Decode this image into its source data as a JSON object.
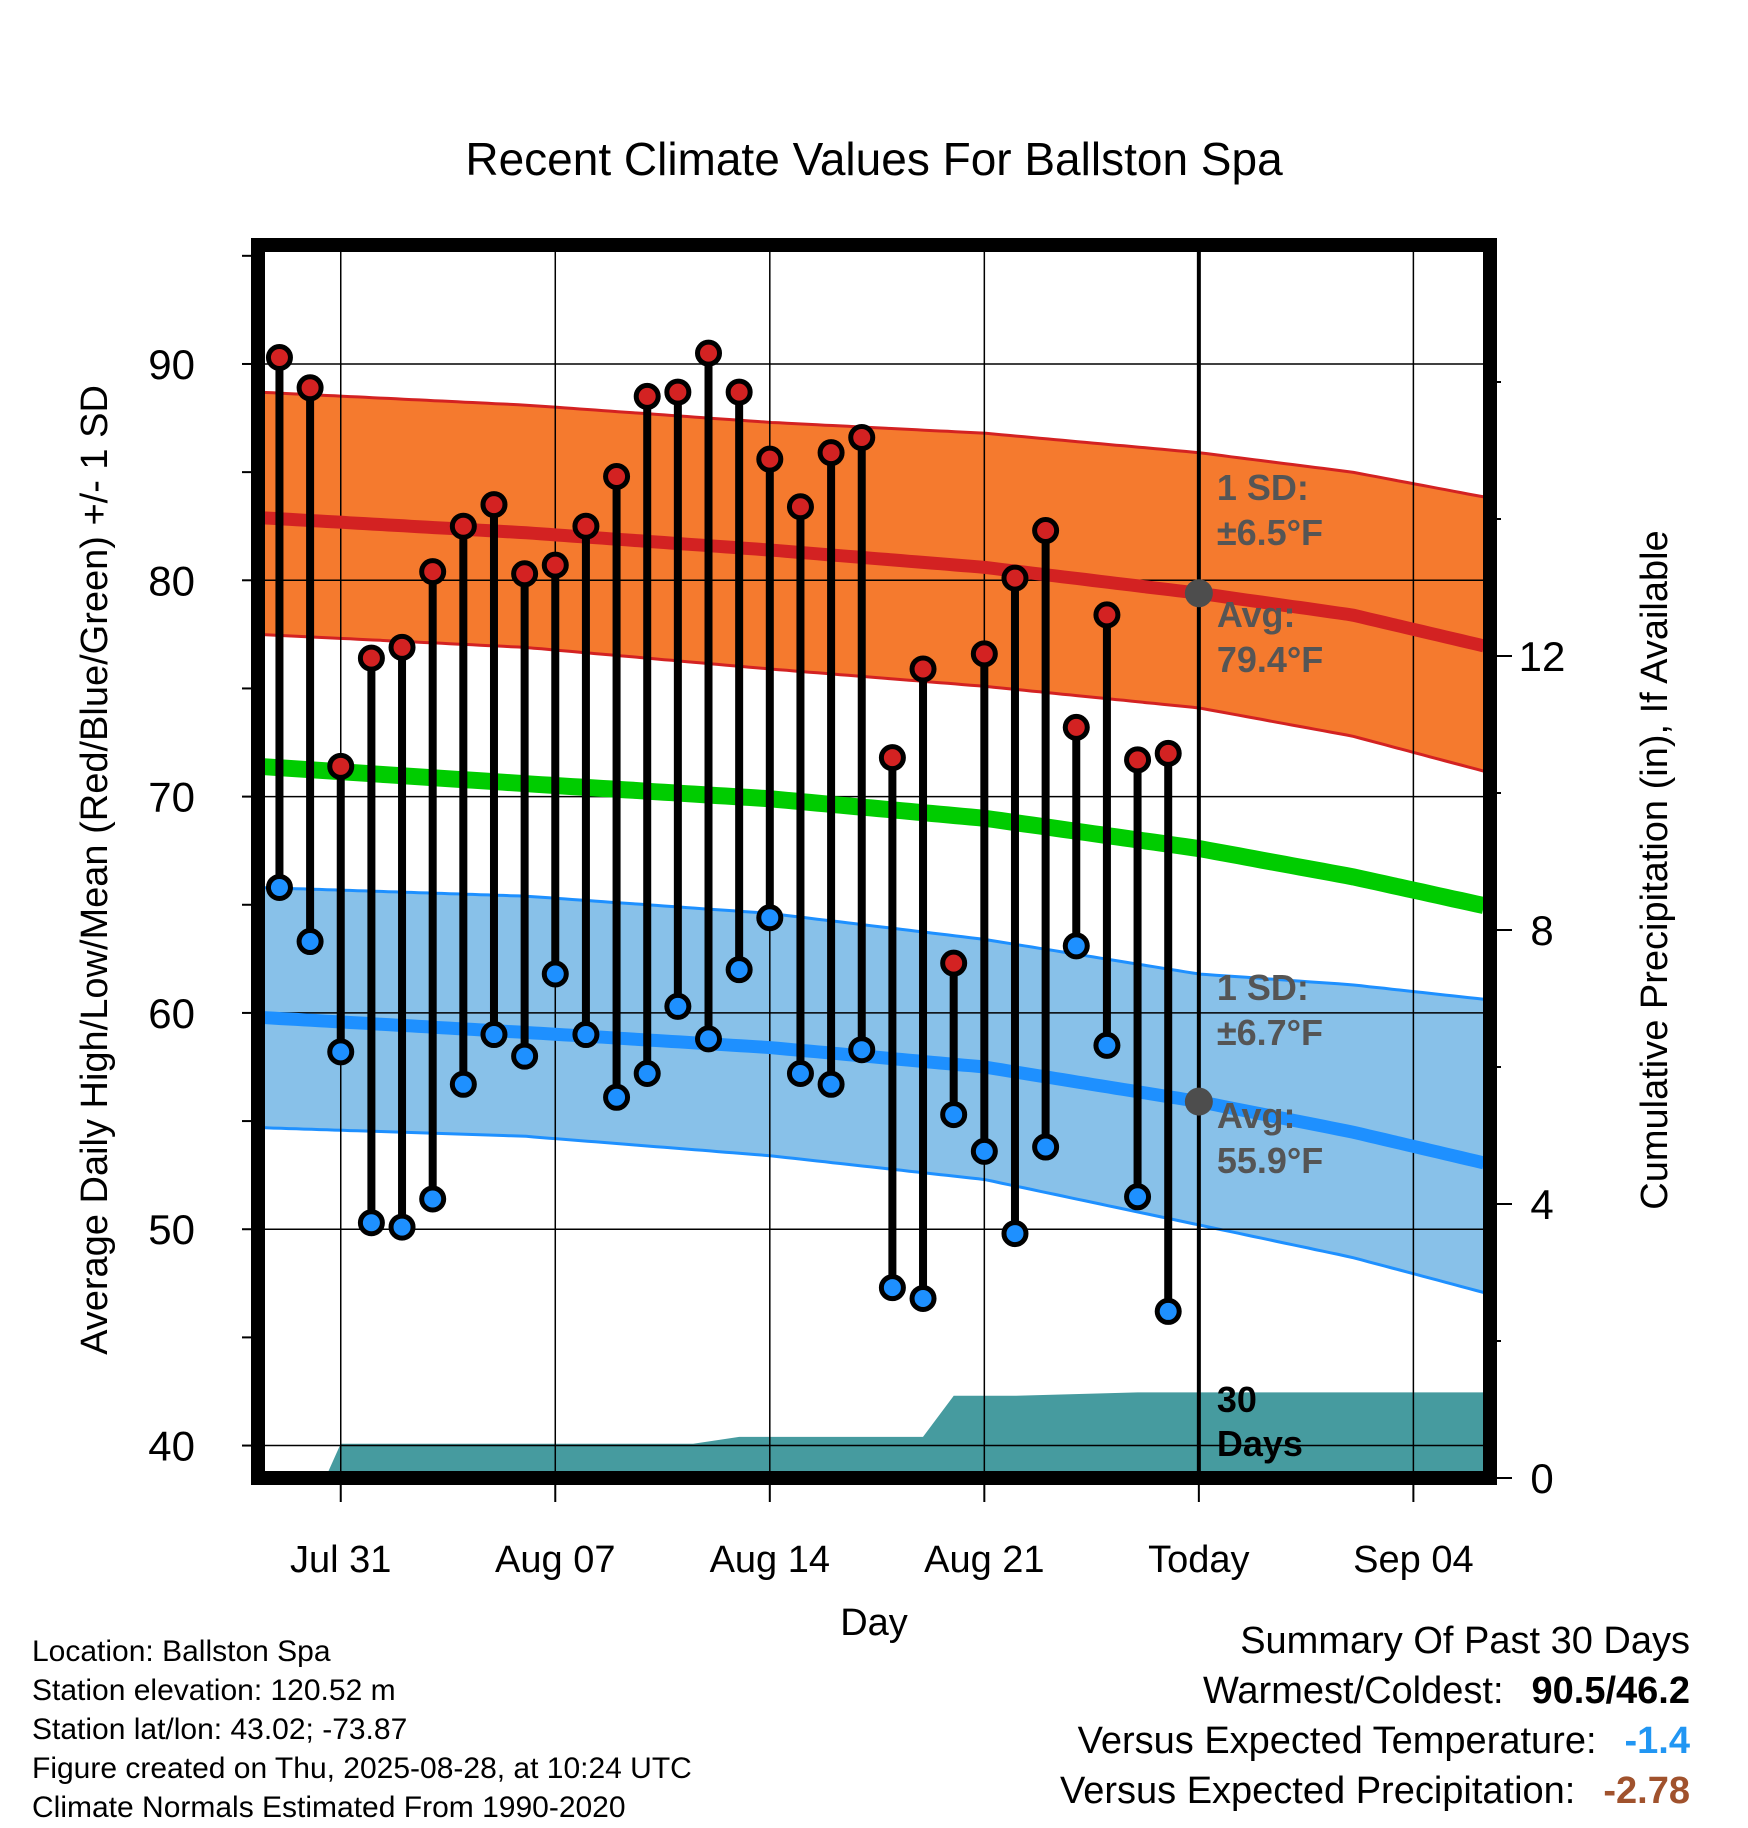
{
  "chart_data": {
    "type": "line",
    "title": "Recent Climate Values For Ballston Spa",
    "xlabel": "Day",
    "ylabel": "Average Daily High/Low/Mean (Red/Blue/Green) +/- 1 SD",
    "y2label": "Cumulative Precipitation (in), If Available",
    "ylim": [
      38.5,
      95.5
    ],
    "y2lim": [
      0,
      18
    ],
    "yticks": [
      40,
      50,
      60,
      70,
      80,
      90
    ],
    "y2ticks": [
      0,
      4,
      8,
      12
    ],
    "xticks": [
      {
        "day": 2,
        "label": "Jul 31"
      },
      {
        "day": 9,
        "label": "Aug 07"
      },
      {
        "day": 16,
        "label": "Aug 14"
      },
      {
        "day": 23,
        "label": "Aug 21"
      },
      {
        "day": 30,
        "label": "Today"
      },
      {
        "day": 37,
        "label": "Sep 04"
      }
    ],
    "xlim": [
      -0.7,
      39.5
    ],
    "grid": true,
    "today_day": 30,
    "dates": [
      "Jul 29",
      "Jul 30",
      "Jul 31",
      "Aug 01",
      "Aug 02",
      "Aug 03",
      "Aug 04",
      "Aug 05",
      "Aug 06",
      "Aug 07",
      "Aug 08",
      "Aug 09",
      "Aug 10",
      "Aug 11",
      "Aug 12",
      "Aug 13",
      "Aug 14",
      "Aug 15",
      "Aug 16",
      "Aug 17",
      "Aug 18",
      "Aug 19",
      "Aug 20",
      "Aug 21",
      "Aug 22",
      "Aug 23",
      "Aug 24",
      "Aug 25",
      "Aug 26",
      "Aug 27"
    ],
    "highs": [
      90.3,
      88.9,
      71.4,
      76.4,
      76.9,
      80.4,
      82.5,
      83.5,
      80.3,
      80.7,
      82.5,
      84.8,
      88.5,
      88.7,
      90.5,
      88.7,
      85.6,
      83.4,
      85.9,
      86.6,
      71.8,
      75.9,
      62.3,
      76.6,
      80.1,
      82.3,
      73.2,
      78.4,
      71.7,
      72.0
    ],
    "lows": [
      65.8,
      63.3,
      58.2,
      50.3,
      50.1,
      51.4,
      56.7,
      59.0,
      58.0,
      61.8,
      59.0,
      56.1,
      57.2,
      60.3,
      58.8,
      62.0,
      64.4,
      57.2,
      56.7,
      58.3,
      47.3,
      46.8,
      55.3,
      53.6,
      49.8,
      53.8,
      63.1,
      58.5,
      51.5,
      46.2
    ],
    "normal_high": {
      "x": [
        -0.7,
        8,
        16,
        23,
        30,
        35,
        39.5
      ],
      "avg": [
        82.9,
        82.2,
        81.4,
        80.6,
        79.4,
        78.4,
        76.9
      ],
      "upper": [
        88.7,
        88.1,
        87.3,
        86.8,
        85.9,
        85.0,
        83.8
      ],
      "lower": [
        77.5,
        76.9,
        75.9,
        75.1,
        74.1,
        72.8,
        71.1
      ]
    },
    "normal_low": {
      "x": [
        -0.7,
        8,
        16,
        23,
        30,
        35,
        39.5
      ],
      "avg": [
        59.8,
        59.1,
        58.4,
        57.5,
        55.9,
        54.5,
        53.0
      ],
      "upper": [
        65.8,
        65.4,
        64.6,
        63.4,
        61.8,
        61.3,
        60.6
      ],
      "lower": [
        54.7,
        54.3,
        53.4,
        52.3,
        50.2,
        48.7,
        47.0
      ]
    },
    "normal_mean": {
      "x": [
        -0.7,
        8,
        16,
        23,
        30,
        35,
        39.5
      ],
      "values": [
        71.4,
        70.6,
        69.9,
        69.0,
        67.6,
        66.3,
        64.9
      ]
    },
    "precip": {
      "x": [
        1.5,
        2,
        13.5,
        15,
        21,
        22,
        24,
        28,
        39.5
      ],
      "values": [
        0,
        0.5,
        0.5,
        0.6,
        0.6,
        1.2,
        1.2,
        1.25,
        1.25
      ]
    },
    "annotations": {
      "high_sd_label": "1 SD:",
      "high_sd_value": "±6.5°F",
      "high_avg_label": "Avg:",
      "high_avg_value": "79.4°F",
      "low_sd_label": "1 SD:",
      "low_sd_value": "±6.7°F",
      "low_avg_label": "Avg:",
      "low_avg_value": "55.9°F",
      "days_line1": "30",
      "days_line2": "Days"
    },
    "colors": {
      "high": "#d32222",
      "high_band": "#f57a2e",
      "low": "#1e90ff",
      "low_band": "#88c1e9",
      "mean": "#00cc00",
      "precip": "#469b9f",
      "today_dot": "#4d4d4d",
      "annotation": "#555555"
    }
  },
  "info": {
    "location": "Location: Ballston Spa",
    "elevation": "Station elevation: 120.52 m",
    "latlon": "Station lat/lon: 43.02; -73.87",
    "created": "Figure created on Thu, 2025-08-28, at 10:24 UTC",
    "normals": "Climate Normals Estimated From 1990-2020"
  },
  "summary": {
    "title": "Summary Of Past 30 Days",
    "warmest_label": "Warmest/Coldest:",
    "warmest_value": "90.5/46.2",
    "temp_label": "Versus Expected Temperature:",
    "temp_value": "-1.4",
    "precip_label": "Versus Expected Precipitation:",
    "precip_value": "-2.78"
  }
}
